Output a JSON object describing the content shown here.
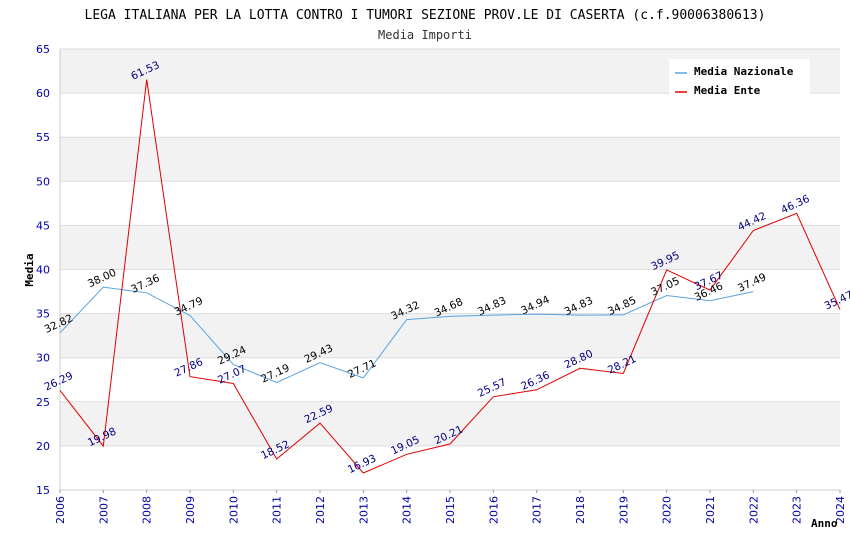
{
  "chart_data": {
    "type": "line",
    "title": "LEGA ITALIANA PER LA LOTTA CONTRO I TUMORI SEZIONE PROV.LE DI CASERTA (c.f.90006380613)",
    "subtitle": "Media Importi",
    "xlabel": "Anno",
    "ylabel": "Media",
    "ylim": [
      15,
      65
    ],
    "yticks": [
      15,
      20,
      25,
      30,
      35,
      40,
      45,
      50,
      55,
      60,
      65
    ],
    "x": [
      "2006",
      "2007",
      "2008",
      "2009",
      "2010",
      "2011",
      "2012",
      "2013",
      "2014",
      "2015",
      "2016",
      "2017",
      "2018",
      "2019",
      "2020",
      "2021",
      "2022",
      "2023",
      "2024"
    ],
    "grid": true,
    "legend_position": "top-right",
    "series": [
      {
        "name": "Media Nazionale",
        "color": "#5ba3e0",
        "label_color": "#000000",
        "values": [
          32.82,
          38.0,
          37.36,
          34.79,
          29.24,
          27.19,
          29.43,
          27.71,
          34.32,
          34.68,
          34.83,
          34.94,
          34.83,
          34.85,
          37.05,
          36.46,
          37.49,
          null,
          null
        ],
        "labels": [
          "32.82",
          "38.00",
          "37.36",
          "34.79",
          "29.24",
          "27.19",
          "29.43",
          "27.71",
          "34.32",
          "34.68",
          "34.83",
          "34.94",
          "34.83",
          "34.85",
          "37.05",
          "36.46",
          "37.49",
          null,
          null
        ]
      },
      {
        "name": "Media Ente",
        "color": "#e00000",
        "label_color": "#000080",
        "values": [
          26.29,
          19.98,
          61.53,
          27.86,
          27.07,
          18.52,
          22.59,
          16.93,
          19.05,
          20.21,
          25.57,
          26.36,
          28.8,
          28.21,
          39.95,
          37.67,
          44.42,
          46.36,
          35.47
        ],
        "labels": [
          "26.29",
          "19.98",
          "61.53",
          "27.86",
          "27.07",
          "18.52",
          "22.59",
          "16.93",
          "19.05",
          "20.21",
          "25.57",
          "26.36",
          "28.80",
          "28.21",
          "39.95",
          "37.67",
          "44.42",
          "46.36",
          "35.47"
        ]
      }
    ]
  }
}
